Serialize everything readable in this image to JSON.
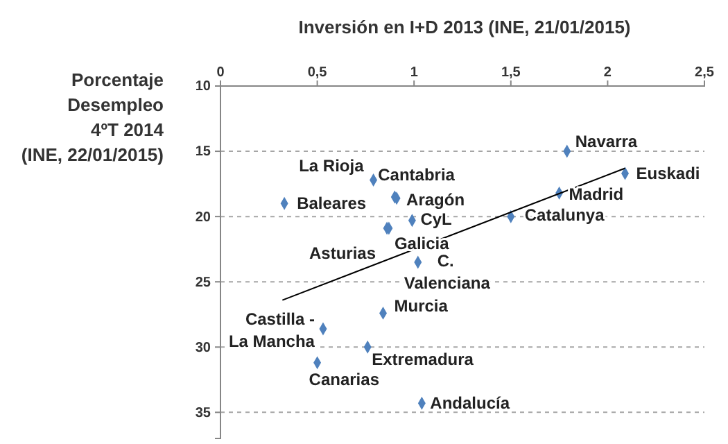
{
  "chart_data": {
    "type": "scatter",
    "title": "Inversión en I+D 2013 (INE, 21/01/2015)",
    "ylabel": "Porcentaje\nDesempleo\n4ºT 2014\n(INE, 22/01/2015)",
    "xlim": [
      0,
      2.5
    ],
    "xticks": [
      {
        "value": 0,
        "label": "0"
      },
      {
        "value": 0.5,
        "label": "0,5"
      },
      {
        "value": 1,
        "label": "1"
      },
      {
        "value": 1.5,
        "label": "1,5"
      },
      {
        "value": 2,
        "label": "2"
      },
      {
        "value": 2.5,
        "label": "2,5"
      }
    ],
    "ylim": [
      37,
      10
    ],
    "yticks": [
      10,
      15,
      20,
      25,
      30,
      35
    ],
    "grid": "y",
    "series": [
      {
        "marker": "diamond",
        "color": "#4f81bd",
        "x": [
          1.79,
          2.09,
          1.75,
          1.5,
          0.79,
          0.9,
          0.91,
          0.33,
          0.99,
          0.86,
          0.87,
          1.02,
          0.84,
          0.53,
          0.76,
          0.5,
          1.04
        ],
        "values": [
          15.0,
          16.7,
          18.2,
          20.0,
          17.2,
          18.5,
          18.6,
          19.0,
          20.3,
          20.9,
          20.9,
          23.5,
          27.4,
          28.6,
          30.0,
          31.2,
          34.3
        ]
      },
      {
        "type": "line",
        "marker": "none",
        "color": "#000000",
        "x": [
          0.32,
          2.09
        ],
        "values": [
          26.4,
          16.3
        ]
      }
    ],
    "annotations": [
      {
        "text": "Navarra",
        "x": 1.79,
        "y": 15.0
      },
      {
        "text": "Euskadi",
        "x": 2.09,
        "y": 16.7
      },
      {
        "text": "Madrid",
        "x": 1.75,
        "y": 18.2
      },
      {
        "text": "Catalunya",
        "x": 1.5,
        "y": 20.0
      },
      {
        "text": "La Rioja",
        "x": 0.79,
        "y": 17.2
      },
      {
        "text": "Cantabria",
        "x": 0.9,
        "y": 18.5
      },
      {
        "text": "Aragón",
        "x": 0.91,
        "y": 18.6
      },
      {
        "text": "Baleares",
        "x": 0.33,
        "y": 19.0
      },
      {
        "text": "CyL",
        "x": 0.99,
        "y": 20.3
      },
      {
        "text": "Asturias",
        "x": 0.86,
        "y": 20.9
      },
      {
        "text": "Galicia",
        "x": 0.87,
        "y": 20.9
      },
      {
        "text": "C.\nValenciana",
        "x": 1.02,
        "y": 23.5
      },
      {
        "text": "Murcia",
        "x": 0.84,
        "y": 27.4
      },
      {
        "text": "Castilla  -\nLa Mancha",
        "x": 0.53,
        "y": 28.6
      },
      {
        "text": "Extremadura",
        "x": 0.76,
        "y": 30.0
      },
      {
        "text": "Canarias",
        "x": 0.5,
        "y": 31.2
      },
      {
        "text": "Andalucía",
        "x": 1.04,
        "y": 34.3
      }
    ]
  }
}
